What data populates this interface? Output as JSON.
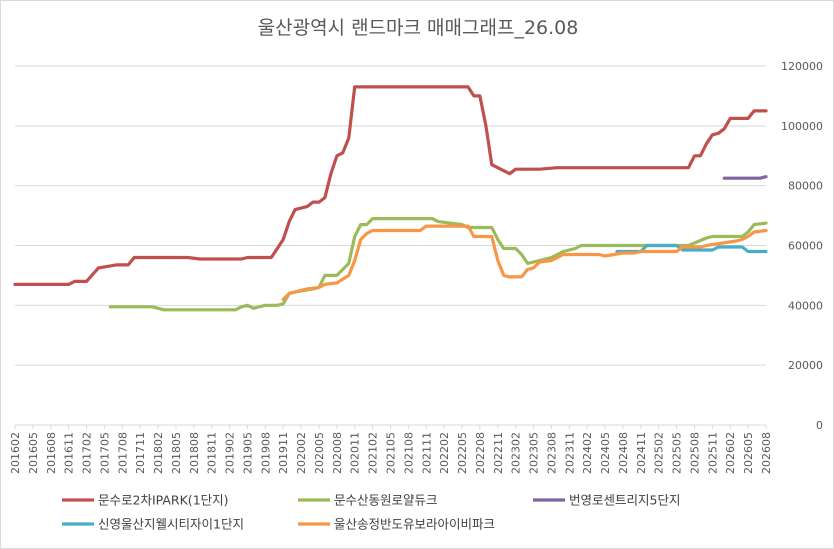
{
  "chart_data": {
    "type": "line",
    "title": "울산광역시 랜드마크 매매그래프_26.08",
    "ylim": [
      0,
      120000
    ],
    "y_ticks": [
      "0",
      "20000",
      "40000",
      "60000",
      "80000",
      "100000",
      "120000"
    ],
    "y_tick_values": [
      0,
      20000,
      40000,
      60000,
      80000,
      100000,
      120000
    ],
    "x_ticks": [
      "201602",
      "201605",
      "201608",
      "201611",
      "201702",
      "201705",
      "201708",
      "201711",
      "201802",
      "201805",
      "201808",
      "201811",
      "201902",
      "201905",
      "201908",
      "201911",
      "202002",
      "202005",
      "202008",
      "202011",
      "202102",
      "202105",
      "202108",
      "202111",
      "202202",
      "202205",
      "202208",
      "202211",
      "202302",
      "202305",
      "202308",
      "202311",
      "202402",
      "202405",
      "202408",
      "202411",
      "202502",
      "202505",
      "202508",
      "202511",
      "202602",
      "202605",
      "202608"
    ],
    "grid": true,
    "legend_position": "bottom",
    "series": [
      {
        "name": "문수로2차IPARK(1단지)",
        "color": "#C0504D",
        "points": [
          [
            "201602",
            47000
          ],
          [
            "201611",
            47000
          ],
          [
            "201612",
            48000
          ],
          [
            "201702",
            48000
          ],
          [
            "201704",
            52500
          ],
          [
            "201707",
            53500
          ],
          [
            "201709",
            53500
          ],
          [
            "201710",
            56000
          ],
          [
            "201712",
            56000
          ],
          [
            "201807",
            56000
          ],
          [
            "201809",
            55500
          ],
          [
            "201904",
            55500
          ],
          [
            "201905",
            56000
          ],
          [
            "201909",
            56000
          ],
          [
            "201910",
            59000
          ],
          [
            "201911",
            62000
          ],
          [
            "201912",
            68000
          ],
          [
            "202001",
            72000
          ],
          [
            "202003",
            73000
          ],
          [
            "202004",
            74500
          ],
          [
            "202005",
            74500
          ],
          [
            "202006",
            76000
          ],
          [
            "202007",
            84000
          ],
          [
            "202008",
            90000
          ],
          [
            "202009",
            91000
          ],
          [
            "202010",
            96000
          ],
          [
            "202011",
            113000
          ],
          [
            "202206",
            113000
          ],
          [
            "202207",
            110000
          ],
          [
            "202208",
            110000
          ],
          [
            "202209",
            100000
          ],
          [
            "202210",
            87000
          ],
          [
            "202212",
            85000
          ],
          [
            "202301",
            84000
          ],
          [
            "202302",
            85500
          ],
          [
            "202306",
            85500
          ],
          [
            "202309",
            86000
          ],
          [
            "202507",
            86000
          ],
          [
            "202508",
            90000
          ],
          [
            "202509",
            90000
          ],
          [
            "202510",
            94000
          ],
          [
            "202511",
            97000
          ],
          [
            "202512",
            97500
          ],
          [
            "202601",
            99000
          ],
          [
            "202602",
            102500
          ],
          [
            "202605",
            102500
          ],
          [
            "202606",
            105000
          ],
          [
            "202608",
            105000
          ]
        ]
      },
      {
        "name": "문수산동원로얄듀크",
        "color": "#9BBB59",
        "points": [
          [
            "201706",
            39500
          ],
          [
            "201801",
            39500
          ],
          [
            "201803",
            38500
          ],
          [
            "201903",
            38500
          ],
          [
            "201904",
            39500
          ],
          [
            "201905",
            40000
          ],
          [
            "201906",
            39000
          ],
          [
            "201908",
            40000
          ],
          [
            "201910",
            40000
          ],
          [
            "201911",
            40500
          ],
          [
            "201912",
            44000
          ],
          [
            "202001",
            44500
          ],
          [
            "202004",
            45500
          ],
          [
            "202005",
            46000
          ],
          [
            "202006",
            50000
          ],
          [
            "202008",
            50000
          ],
          [
            "202010",
            54000
          ],
          [
            "202011",
            63000
          ],
          [
            "202012",
            67000
          ],
          [
            "202101",
            67000
          ],
          [
            "202102",
            69000
          ],
          [
            "202112",
            69000
          ],
          [
            "202201",
            68000
          ],
          [
            "202205",
            67000
          ],
          [
            "202206",
            66000
          ],
          [
            "202210",
            66000
          ],
          [
            "202211",
            62000
          ],
          [
            "202212",
            59000
          ],
          [
            "202302",
            59000
          ],
          [
            "202303",
            57000
          ],
          [
            "202304",
            54000
          ],
          [
            "202305",
            54500
          ],
          [
            "202308",
            56000
          ],
          [
            "202310",
            58000
          ],
          [
            "202312",
            59000
          ],
          [
            "202401",
            60000
          ],
          [
            "202411",
            60000
          ],
          [
            "202507",
            60000
          ],
          [
            "202510",
            62500
          ],
          [
            "202511",
            63000
          ],
          [
            "202604",
            63000
          ],
          [
            "202605",
            64500
          ],
          [
            "202606",
            67000
          ],
          [
            "202608",
            67500
          ]
        ]
      },
      {
        "name": "번영로센트리지5단지",
        "color": "#8064A2",
        "points": [
          [
            "202601",
            82500
          ],
          [
            "202607",
            82500
          ],
          [
            "202608",
            83000
          ]
        ]
      },
      {
        "name": "신영울산지웰시티자이1단지",
        "color": "#4BACC6",
        "points": [
          [
            "202407",
            58000
          ],
          [
            "202411",
            58000
          ],
          [
            "202412",
            60000
          ],
          [
            "202505",
            60000
          ],
          [
            "202506",
            58500
          ],
          [
            "202511",
            58500
          ],
          [
            "202512",
            59500
          ],
          [
            "202604",
            59500
          ],
          [
            "202605",
            58000
          ],
          [
            "202608",
            58000
          ]
        ]
      },
      {
        "name": "울산송정반도유보라아이비파크",
        "color": "#F79646",
        "points": [
          [
            "201911",
            42000
          ],
          [
            "201912",
            44000
          ],
          [
            "202002",
            45000
          ],
          [
            "202003",
            45500
          ],
          [
            "202005",
            46000
          ],
          [
            "202006",
            47000
          ],
          [
            "202008",
            47500
          ],
          [
            "202010",
            50000
          ],
          [
            "202011",
            55000
          ],
          [
            "202012",
            62000
          ],
          [
            "202101",
            64000
          ],
          [
            "202102",
            65000
          ],
          [
            "202110",
            65000
          ],
          [
            "202111",
            66500
          ],
          [
            "202206",
            66500
          ],
          [
            "202207",
            63000
          ],
          [
            "202210",
            63000
          ],
          [
            "202211",
            55000
          ],
          [
            "202212",
            50000
          ],
          [
            "202301",
            49500
          ],
          [
            "202303",
            49500
          ],
          [
            "202304",
            52000
          ],
          [
            "202305",
            52500
          ],
          [
            "202306",
            54500
          ],
          [
            "202308",
            55000
          ],
          [
            "202309",
            56000
          ],
          [
            "202310",
            57000
          ],
          [
            "202404",
            57000
          ],
          [
            "202405",
            56500
          ],
          [
            "202408",
            57500
          ],
          [
            "202410",
            57500
          ],
          [
            "202411",
            58000
          ],
          [
            "202412",
            58000
          ],
          [
            "202505",
            58000
          ],
          [
            "202506",
            59500
          ],
          [
            "202509",
            59500
          ],
          [
            "202510",
            60000
          ],
          [
            "202603",
            61500
          ],
          [
            "202604",
            62000
          ],
          [
            "202605",
            63000
          ],
          [
            "202606",
            64500
          ],
          [
            "202608",
            65000
          ]
        ]
      }
    ]
  }
}
